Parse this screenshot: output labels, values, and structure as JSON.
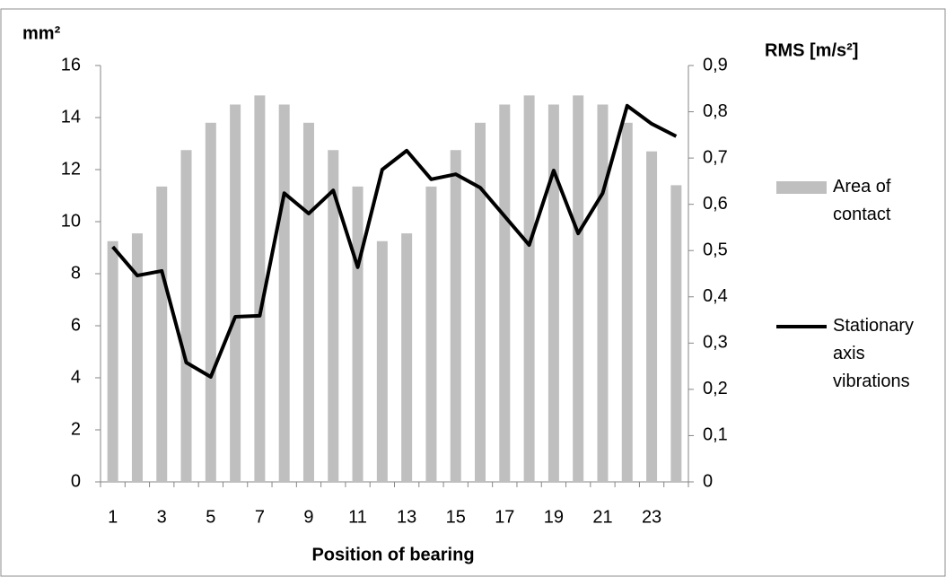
{
  "chart_data": {
    "type": "bar-line",
    "y_label": "mm²",
    "y2_label": "RMS [m/s²]",
    "x_label": "Position of bearing",
    "categories": [
      "1",
      null,
      "3",
      null,
      "5",
      null,
      "7",
      null,
      "9",
      null,
      "11",
      null,
      "13",
      null,
      "15",
      null,
      "17",
      null,
      "19",
      null,
      "21",
      null,
      "23",
      null
    ],
    "series": [
      {
        "name": "Area of contact",
        "type": "bar",
        "color": "#bfbfbf",
        "values": [
          9.25,
          9.55,
          11.35,
          12.75,
          13.8,
          14.5,
          14.85,
          14.5,
          13.8,
          12.75,
          11.35,
          9.25,
          9.55,
          11.35,
          12.75,
          13.8,
          14.5,
          14.85,
          14.5,
          14.85,
          14.5,
          13.8,
          12.7,
          11.4
        ]
      },
      {
        "name": "Stationary axis vibrations",
        "type": "line",
        "color": "#000000",
        "axis": "y2",
        "values": [
          0.508,
          0.446,
          0.456,
          0.258,
          0.227,
          0.357,
          0.359,
          0.624,
          0.58,
          0.63,
          0.464,
          0.675,
          0.716,
          0.654,
          0.665,
          0.636,
          0.574,
          0.512,
          0.673,
          0.537,
          0.624,
          0.813,
          0.774,
          0.747
        ]
      }
    ],
    "ylim": [
      0,
      16
    ],
    "yticks": [
      0,
      2,
      4,
      6,
      8,
      10,
      12,
      14,
      16
    ],
    "y2lim": [
      0,
      0.9
    ],
    "y2ticks": [
      0,
      {
        "value": 0.1,
        "label": "0,1"
      },
      {
        "value": 0.2,
        "label": "0,2"
      },
      {
        "value": 0.3,
        "label": "0,3"
      },
      {
        "value": 0.4,
        "label": "0,4"
      },
      {
        "value": 0.5,
        "label": "0,5"
      },
      {
        "value": 0.6,
        "label": "0,6"
      },
      {
        "value": 0.7,
        "label": "0,7"
      },
      {
        "value": 0.8,
        "label": "0,8"
      },
      {
        "value": 0.9,
        "label": "0,9"
      }
    ],
    "grid": false,
    "legend": "right"
  }
}
